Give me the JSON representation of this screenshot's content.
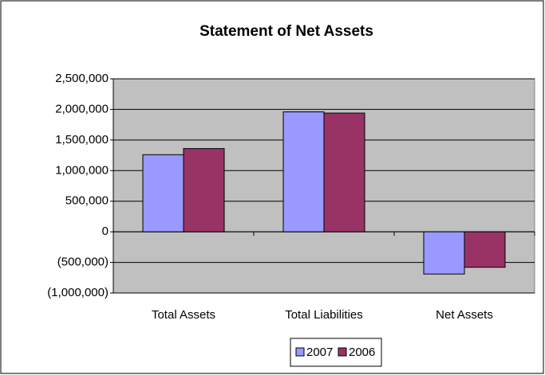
{
  "chart_data": {
    "type": "bar",
    "title": "Statement of Net Assets",
    "categories": [
      "Total Assets",
      "Total Liabilities",
      "Net Assets"
    ],
    "series": [
      {
        "name": "2007",
        "color": "#9999ff",
        "values": [
          1260000,
          1960000,
          -690000
        ]
      },
      {
        "name": "2006",
        "color": "#993366",
        "values": [
          1360000,
          1940000,
          -580000
        ]
      }
    ],
    "ylim": [
      -1000000,
      2500000
    ],
    "yticks": [
      {
        "value": -1000000,
        "label": "(1,000,000)"
      },
      {
        "value": -500000,
        "label": "(500,000)"
      },
      0,
      {
        "value": 500000,
        "label": "500,000"
      },
      {
        "value": 1000000,
        "label": "1,000,000"
      },
      {
        "value": 1500000,
        "label": "1,500,000"
      },
      {
        "value": 2000000,
        "label": "2,000,000"
      },
      {
        "value": 2500000,
        "label": "2,500,000"
      }
    ],
    "grid": true,
    "legend": "bottom"
  }
}
